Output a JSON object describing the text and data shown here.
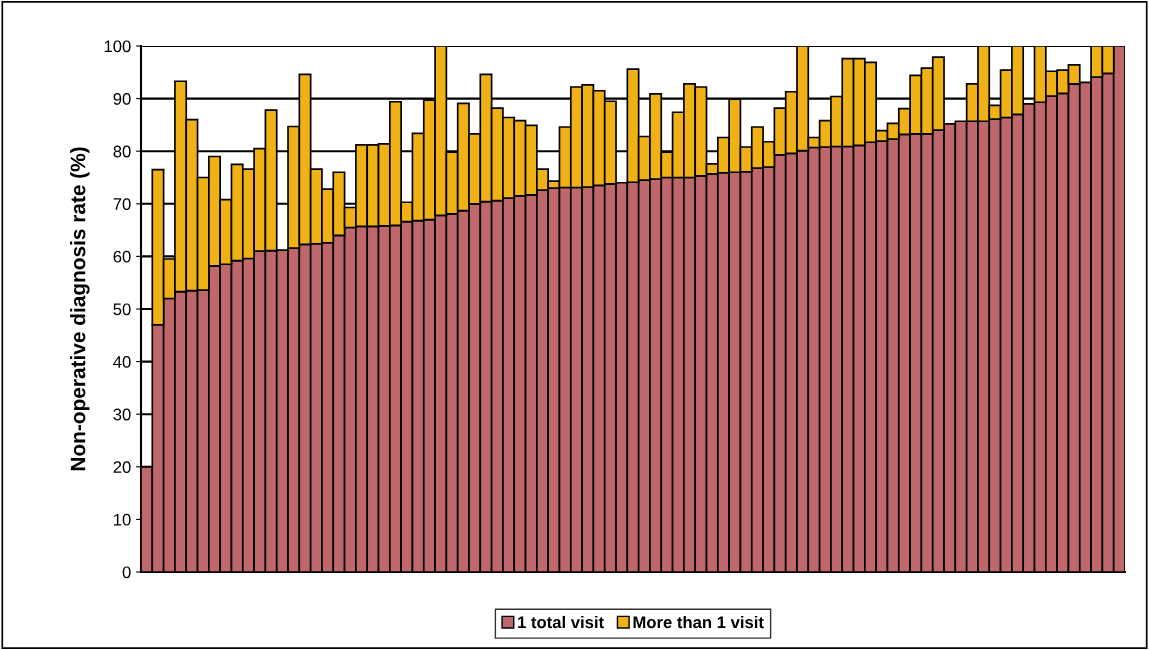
{
  "chart_data": {
    "type": "bar",
    "stacked": true,
    "ylabel": "Non-operative diagnosis rate (%)",
    "categories": [
      null,
      null,
      null,
      null,
      null,
      null,
      null,
      null,
      null,
      null,
      null,
      null,
      null,
      null,
      null,
      null,
      null,
      null,
      null,
      null,
      null,
      null,
      null,
      null,
      null,
      null,
      null,
      null,
      null,
      null,
      null,
      null,
      null,
      null,
      null,
      null,
      null,
      null,
      null,
      null,
      null,
      null,
      null,
      null,
      null,
      null,
      null,
      null,
      null,
      null,
      null,
      null,
      null,
      null,
      null,
      null,
      null,
      null,
      null,
      null,
      null,
      null,
      null,
      null,
      null,
      null,
      null,
      null,
      null,
      null,
      null,
      null,
      null,
      null,
      null,
      null,
      null,
      null,
      null,
      null,
      null,
      null,
      null,
      null,
      null,
      null,
      null
    ],
    "series": [
      {
        "name": "1 total visit",
        "color": "#c0676b",
        "values": [
          20,
          47,
          52,
          53.3,
          53.5,
          53.6,
          58.2,
          58.5,
          59.2,
          59.6,
          61,
          61.1,
          61.2,
          61.6,
          62.3,
          62.4,
          62.6,
          64,
          65.5,
          65.7,
          65.7,
          65.8,
          65.9,
          66.6,
          66.8,
          67,
          67.8,
          68.1,
          68.7,
          70,
          70.4,
          70.6,
          71.1,
          71.5,
          71.7,
          72.6,
          73,
          73.1,
          73.1,
          73.2,
          73.5,
          73.8,
          74,
          74.1,
          74.5,
          74.7,
          75,
          75,
          75,
          75.3,
          75.7,
          75.9,
          76,
          76.1,
          76.8,
          77,
          79.3,
          79.6,
          80.1,
          80.7,
          80.8,
          80.9,
          80.9,
          81.1,
          81.7,
          81.9,
          82.3,
          83.2,
          83.3,
          83.3,
          84,
          85.2,
          85.7,
          85.7,
          85.7,
          86.1,
          86.4,
          87,
          89,
          89.3,
          90.5,
          91,
          92.8,
          93.1,
          94.1,
          94.8,
          100
        ]
      },
      {
        "name": "More than 1 visit",
        "color": "#efb115",
        "values": [
          null,
          29.5,
          7.5,
          40,
          32.5,
          21.4,
          20.8,
          12.3,
          18.3,
          17,
          19.5,
          26.7,
          null,
          23.1,
          32.3,
          14.2,
          10.2,
          12,
          3.8,
          15.5,
          15.5,
          15.6,
          23.5,
          3.7,
          16.6,
          22.7,
          32.2,
          11.7,
          20.4,
          13.3,
          24.2,
          17.6,
          15.3,
          14.3,
          13.2,
          4,
          1.3,
          11.5,
          19.1,
          19.4,
          18,
          15.7,
          null,
          21.5,
          8.3,
          16.2,
          4.8,
          12.4,
          17.8,
          16.9,
          1.9,
          6.7,
          13.9,
          4.7,
          7.8,
          4.8,
          8.9,
          11.7,
          19.9,
          1.9,
          5,
          9.5,
          16.7,
          16.5,
          15.2,
          2,
          3,
          4.9,
          11.1,
          12.5,
          13.9,
          null,
          null,
          7.1,
          14.3,
          2.6,
          9,
          13,
          null,
          10.7,
          4.7,
          4.4,
          3.6,
          null,
          5.9,
          5.2,
          null
        ]
      }
    ],
    "ylim": [
      0,
      100
    ],
    "yticks": [
      0,
      10,
      20,
      30,
      40,
      50,
      60,
      70,
      80,
      90,
      100
    ],
    "grid": "y",
    "legend": "bottom"
  }
}
